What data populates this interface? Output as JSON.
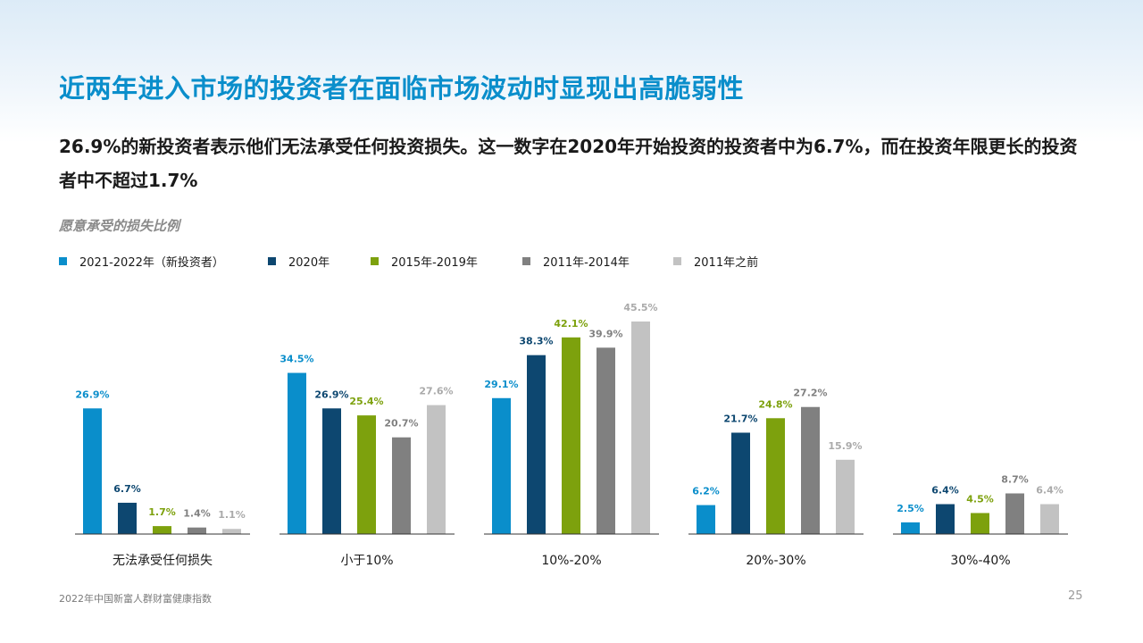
{
  "title": "近两年进入市场的投资者在面临市场波动时显现出高脆弱性",
  "subtitle": "26.9%的新投资者表示他们无法承受任何投资损失。这一数字在2020年开始投资的投资者中为6.7%，而在投资年限更长的投资者中不超过1.7%",
  "footer": {
    "source": "2022年中国新富人群财富健康指数",
    "page": "25"
  },
  "colors": [
    "#0a8ecb",
    "#0d4770",
    "#7da10d",
    "#808080",
    "#c2c2c2"
  ],
  "chart_data": {
    "type": "bar",
    "title": "愿意承受的损失比例",
    "legend_position": "top-left",
    "categories": [
      "无法承受任何损失",
      "小于10%",
      "10%-20%",
      "20%-30%",
      "30%-40%"
    ],
    "series": [
      {
        "name": "2021-2022年（新投资者）",
        "values": [
          26.9,
          34.5,
          29.1,
          6.2,
          2.5
        ],
        "labels": [
          "26.9%",
          "34.5%",
          "29.1%",
          "6.2%",
          "2.5%"
        ]
      },
      {
        "name": "2020年",
        "values": [
          6.7,
          26.9,
          38.3,
          21.7,
          6.4
        ],
        "labels": [
          "6.7%",
          "26.9%",
          "38.3%",
          "21.7%",
          "6.4%"
        ]
      },
      {
        "name": "2015年-2019年",
        "values": [
          1.7,
          25.4,
          42.1,
          24.8,
          4.5
        ],
        "labels": [
          "1.7%",
          "25.4%",
          "42.1%",
          "24.8%",
          "4.5%"
        ]
      },
      {
        "name": "2011年-2014年",
        "values": [
          1.4,
          20.7,
          39.9,
          27.2,
          8.7
        ],
        "labels": [
          "1.4%",
          "20.7%",
          "39.9%",
          "27.2%",
          "8.7%"
        ]
      },
      {
        "name": "2011年之前",
        "values": [
          1.1,
          27.6,
          45.5,
          15.9,
          6.4
        ],
        "labels": [
          "1.1%",
          "27.6%",
          "45.5%",
          "15.9%",
          "6.4%"
        ]
      }
    ],
    "ylim": [
      0,
      50
    ]
  }
}
